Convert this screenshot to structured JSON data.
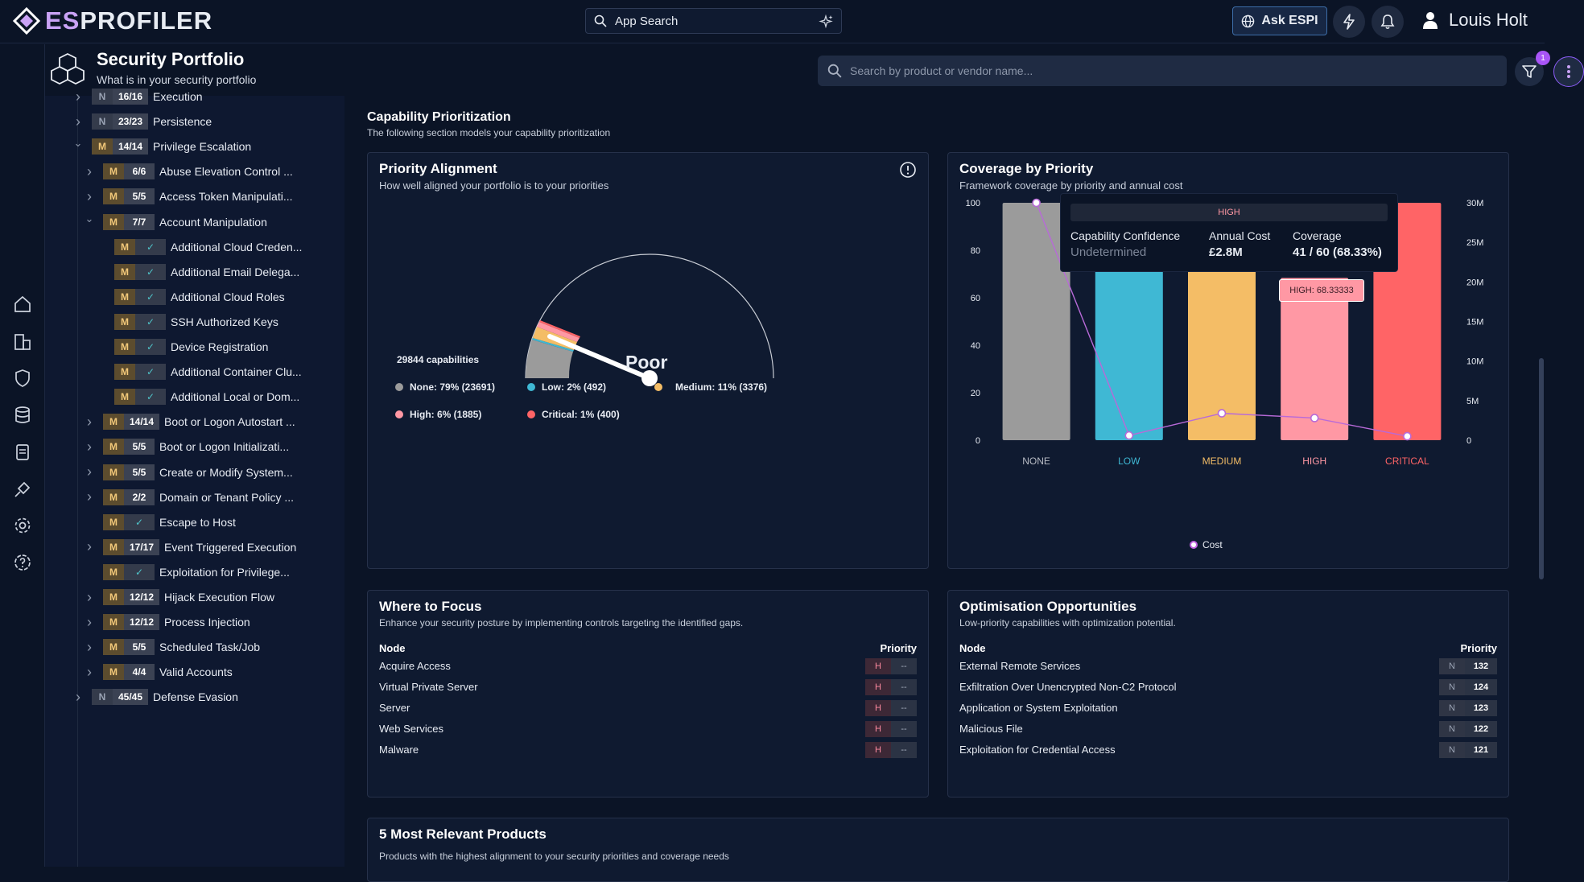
{
  "header": {
    "logo_es": "ES",
    "logo_rest": "PROFILER",
    "app_search_label": "App Search",
    "ask_label": "Ask ESPI",
    "user_name": "Louis Holt"
  },
  "page": {
    "title": "Security Portfolio",
    "subtitle": "What is in your security portfolio",
    "search_placeholder": "Search by product or vendor name...",
    "filter_count": "1"
  },
  "tree": {
    "rows": [
      {
        "label": "Execution",
        "letter": "N",
        "count": "16/16"
      },
      {
        "label": "Persistence",
        "letter": "N",
        "count": "23/23"
      },
      {
        "label": "Privilege Escalation",
        "letter": "M",
        "count": "14/14"
      },
      {
        "label": "Abuse Elevation Control ...",
        "letter": "M",
        "count": "6/6"
      },
      {
        "label": "Access Token Manipulati...",
        "letter": "M",
        "count": "5/5"
      },
      {
        "label": "Account Manipulation",
        "letter": "M",
        "count": "7/7"
      },
      {
        "label": "Additional Cloud Creden...",
        "letter": "M",
        "count": "✓"
      },
      {
        "label": "Additional Email Delega...",
        "letter": "M",
        "count": "✓"
      },
      {
        "label": "Additional Cloud Roles",
        "letter": "M",
        "count": "✓"
      },
      {
        "label": "SSH Authorized Keys",
        "letter": "M",
        "count": "✓"
      },
      {
        "label": "Device Registration",
        "letter": "M",
        "count": "✓"
      },
      {
        "label": "Additional Container Clu...",
        "letter": "M",
        "count": "✓"
      },
      {
        "label": "Additional Local or Dom...",
        "letter": "M",
        "count": "✓"
      },
      {
        "label": "Boot or Logon Autostart ...",
        "letter": "M",
        "count": "14/14"
      },
      {
        "label": "Boot or Logon Initializati...",
        "letter": "M",
        "count": "5/5"
      },
      {
        "label": "Create or Modify System...",
        "letter": "M",
        "count": "5/5"
      },
      {
        "label": "Domain or Tenant Policy ...",
        "letter": "M",
        "count": "2/2"
      },
      {
        "label": "Escape to Host",
        "letter": "M",
        "count": "✓"
      },
      {
        "label": "Event Triggered Execution",
        "letter": "M",
        "count": "17/17"
      },
      {
        "label": "Exploitation for Privilege...",
        "letter": "M",
        "count": "✓"
      },
      {
        "label": "Hijack Execution Flow",
        "letter": "M",
        "count": "12/12"
      },
      {
        "label": "Process Injection",
        "letter": "M",
        "count": "12/12"
      },
      {
        "label": "Scheduled Task/Job",
        "letter": "M",
        "count": "5/5"
      },
      {
        "label": "Valid Accounts",
        "letter": "M",
        "count": "4/4"
      },
      {
        "label": "Defense Evasion",
        "letter": "N",
        "count": "45/45"
      }
    ]
  },
  "section": {
    "title": "Capability Prioritization",
    "subtitle": "The following section models your capability prioritization"
  },
  "alignment": {
    "title": "Priority Alignment",
    "subtitle": "How well aligned your portfolio is to your priorities",
    "capabilities": "29844 capabilities",
    "rating": "Poor",
    "legend": [
      {
        "label": "None: 79% (23691)",
        "color": "#9b9b9b"
      },
      {
        "label": "Low: 2% (492)",
        "color": "#3fb8d4"
      },
      {
        "label": "Medium: 11% (3376)",
        "color": "#f4bd66"
      },
      {
        "label": "High: 6% (1885)",
        "color": "#ff98a4"
      },
      {
        "label": "Critical: 1% (400)",
        "color": "#ff6466"
      }
    ]
  },
  "coverage": {
    "title": "Coverage by Priority",
    "subtitle": "Framework coverage by priority and annual cost",
    "tooltip": {
      "header": "HIGH",
      "conf_label": "Capability Confidence",
      "conf_value": "Undetermined",
      "cost_label": "Annual Cost",
      "cost_value": "£2.8M",
      "cov_label": "Coverage",
      "cov_value": "41 / 60 (68.33%)"
    },
    "bar_label": "HIGH: 68.33333",
    "legend_label": "Cost"
  },
  "chart_data": {
    "type": "bar",
    "title": "Coverage by Priority",
    "categories": [
      "NONE",
      "LOW",
      "MEDIUM",
      "HIGH",
      "CRITICAL"
    ],
    "colors": [
      "#9b9b9b",
      "#3fb8d4",
      "#f4bd66",
      "#ff98a4",
      "#ff6466"
    ],
    "series": [
      {
        "name": "Coverage",
        "values": [
          100,
          100,
          100,
          68.33333,
          100
        ]
      },
      {
        "name": "Cost",
        "axis": "right",
        "values": [
          30,
          0.6,
          3.4,
          2.8,
          0.5
        ]
      }
    ],
    "ylim": [
      0,
      100
    ],
    "yticks": [
      0,
      20,
      40,
      60,
      80,
      100
    ],
    "y2lim": [
      0,
      30
    ],
    "y2ticks": [
      "0",
      "5M",
      "10M",
      "15M",
      "20M",
      "25M",
      "30M"
    ]
  },
  "focus": {
    "title": "Where to Focus",
    "subtitle": "Enhance your security posture by implementing controls targeting the identified gaps.",
    "col_node": "Node",
    "col_priority": "Priority",
    "rows": [
      {
        "node": "Acquire Access",
        "p": "H",
        "v": "--"
      },
      {
        "node": "Virtual Private Server",
        "p": "H",
        "v": "--"
      },
      {
        "node": "Server",
        "p": "H",
        "v": "--"
      },
      {
        "node": "Web Services",
        "p": "H",
        "v": "--"
      },
      {
        "node": "Malware",
        "p": "H",
        "v": "--"
      }
    ]
  },
  "optim": {
    "title": "Optimisation Opportunities",
    "subtitle": "Low-priority capabilities with optimization potential.",
    "col_node": "Node",
    "col_priority": "Priority",
    "rows": [
      {
        "node": "External Remote Services",
        "p": "N",
        "v": "132"
      },
      {
        "node": "Exfiltration Over Unencrypted Non-C2 Protocol",
        "p": "N",
        "v": "124"
      },
      {
        "node": "Application or System Exploitation",
        "p": "N",
        "v": "123"
      },
      {
        "node": "Malicious File",
        "p": "N",
        "v": "122"
      },
      {
        "node": "Exploitation for Credential Access",
        "p": "N",
        "v": "121"
      }
    ]
  },
  "products": {
    "title": "5 Most Relevant Products",
    "subtitle": "Products with the highest alignment to your security priorities and coverage needs"
  }
}
